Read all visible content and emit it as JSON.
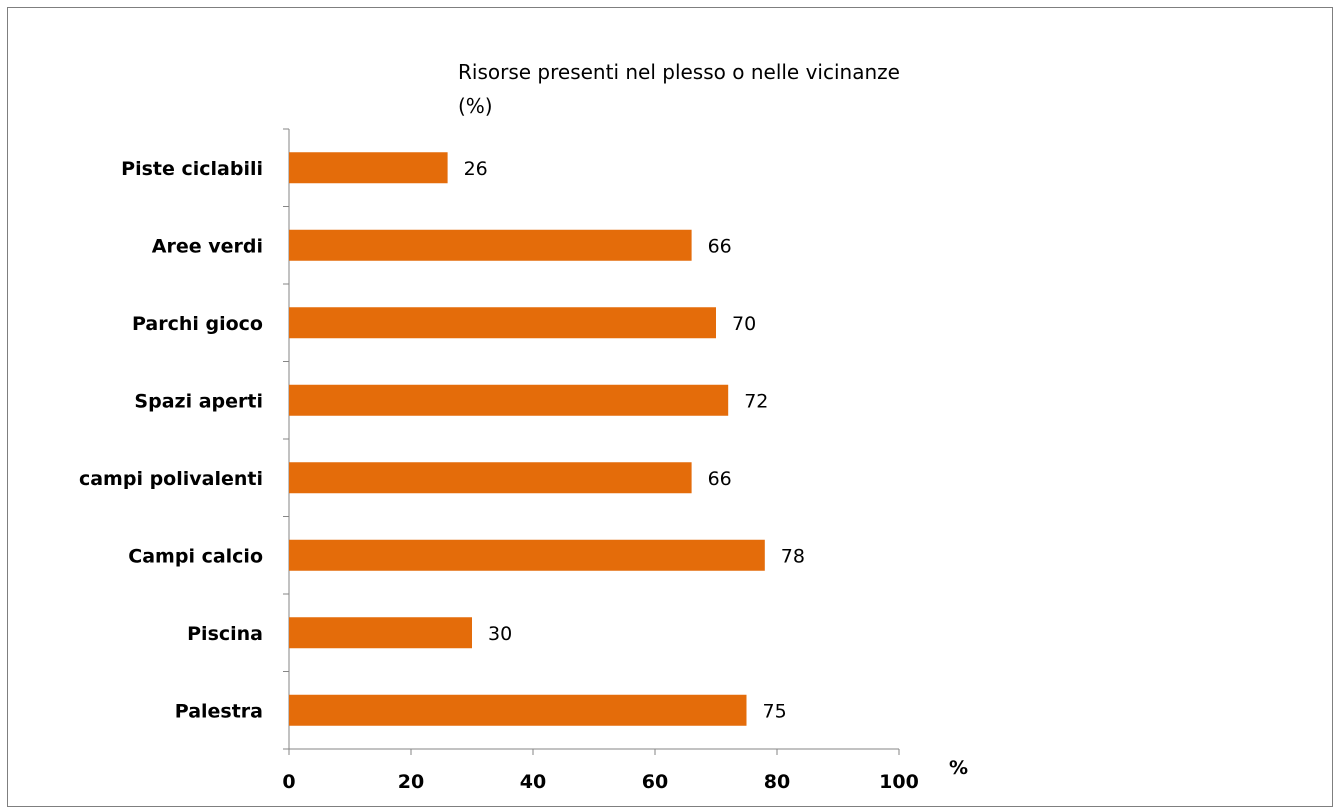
{
  "chart_data": {
    "type": "bar",
    "orientation": "horizontal",
    "title_lines": [
      "Risorse presenti nel plesso o nelle vicinanze",
      "(%)"
    ],
    "categories": [
      "Piste ciclabili",
      "Aree verdi",
      "Parchi gioco",
      "Spazi aperti",
      "campi polivalenti",
      "Campi calcio",
      "Piscina",
      "Palestra"
    ],
    "values": [
      26,
      66,
      70,
      72,
      66,
      78,
      30,
      75
    ],
    "xlim": [
      0,
      100
    ],
    "xticks": [
      0,
      20,
      40,
      60,
      80,
      100
    ],
    "xunit": "%",
    "bar_color": "#e46c0a",
    "grid": false,
    "legend": "none"
  }
}
